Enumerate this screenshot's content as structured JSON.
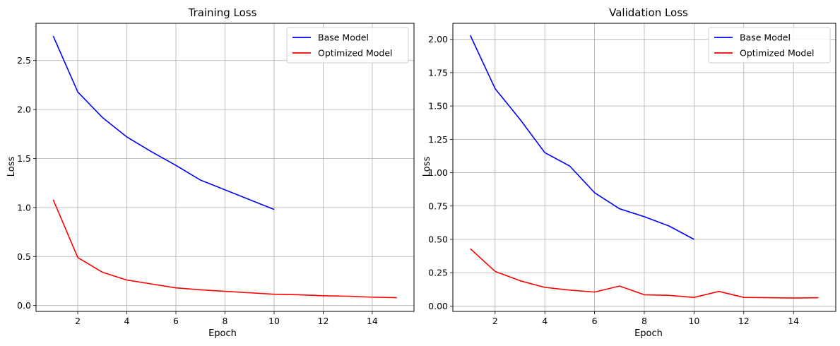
{
  "chart_data": [
    {
      "type": "line",
      "title": "Training Loss",
      "xlabel": "Epoch",
      "ylabel": "Loss",
      "xlim": [
        0.3,
        15.7
      ],
      "ylim": [
        -0.06,
        2.88
      ],
      "xticks": [
        2,
        4,
        6,
        8,
        10,
        12,
        14
      ],
      "yticks": [
        0.0,
        0.5,
        1.0,
        1.5,
        2.0,
        2.5
      ],
      "ytick_labels": [
        "0.0",
        "0.5",
        "1.0",
        "1.5",
        "2.0",
        "2.5"
      ],
      "grid": true,
      "legend_position": "top-right",
      "series": [
        {
          "name": "Base Model",
          "color": "#0000ff",
          "x": [
            1,
            2,
            3,
            4,
            5,
            6,
            7,
            8,
            9,
            10
          ],
          "y": [
            2.75,
            2.18,
            1.92,
            1.72,
            1.57,
            1.43,
            1.28,
            1.18,
            1.08,
            0.98
          ]
        },
        {
          "name": "Optimized Model",
          "color": "#ff0000",
          "x": [
            1,
            2,
            3,
            4,
            5,
            6,
            7,
            8,
            9,
            10,
            11,
            12,
            13,
            14,
            15
          ],
          "y": [
            1.08,
            0.49,
            0.34,
            0.26,
            0.22,
            0.18,
            0.16,
            0.145,
            0.13,
            0.115,
            0.11,
            0.1,
            0.095,
            0.085,
            0.08
          ]
        }
      ]
    },
    {
      "type": "line",
      "title": "Validation Loss",
      "xlabel": "Epoch",
      "ylabel": "Loss",
      "xlim": [
        0.3,
        15.7
      ],
      "ylim": [
        -0.04,
        2.12
      ],
      "xticks": [
        2,
        4,
        6,
        8,
        10,
        12,
        14
      ],
      "yticks": [
        0.0,
        0.25,
        0.5,
        0.75,
        1.0,
        1.25,
        1.5,
        1.75,
        2.0
      ],
      "ytick_labels": [
        "0.00",
        "0.25",
        "0.50",
        "0.75",
        "1.00",
        "1.25",
        "1.50",
        "1.75",
        "2.00"
      ],
      "grid": true,
      "legend_position": "top-right",
      "series": [
        {
          "name": "Base Model",
          "color": "#0000ff",
          "x": [
            1,
            2,
            3,
            4,
            5,
            6,
            7,
            8,
            9,
            10
          ],
          "y": [
            2.03,
            1.63,
            1.4,
            1.15,
            1.05,
            0.85,
            0.73,
            0.67,
            0.6,
            0.5
          ]
        },
        {
          "name": "Optimized Model",
          "color": "#ff0000",
          "x": [
            1,
            2,
            3,
            4,
            5,
            6,
            7,
            8,
            9,
            10,
            11,
            12,
            13,
            14,
            15
          ],
          "y": [
            0.43,
            0.26,
            0.19,
            0.14,
            0.12,
            0.105,
            0.15,
            0.085,
            0.08,
            0.065,
            0.11,
            0.065,
            0.063,
            0.06,
            0.063
          ]
        }
      ]
    }
  ]
}
